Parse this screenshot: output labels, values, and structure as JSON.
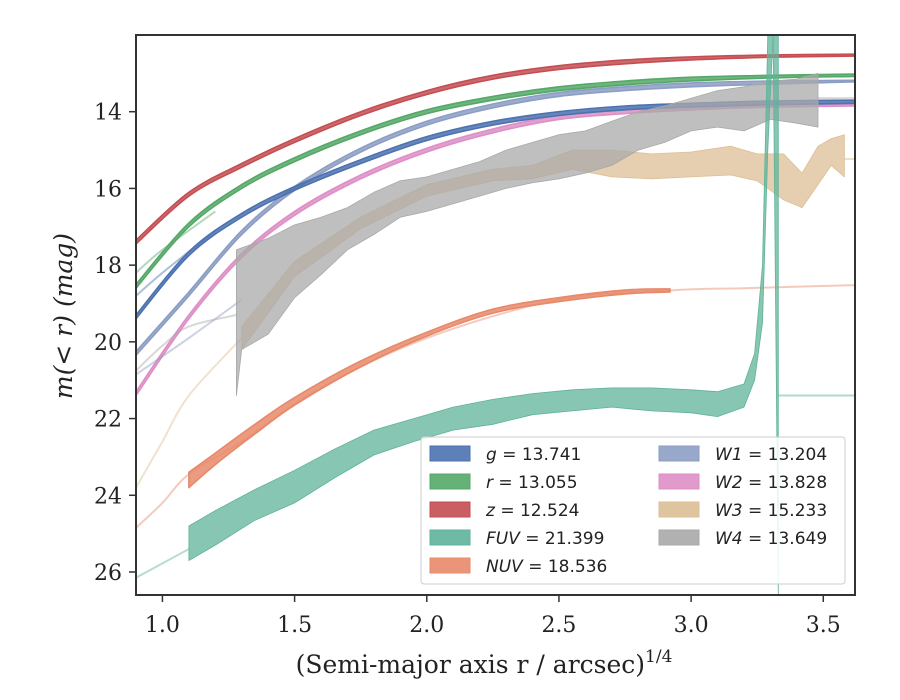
{
  "chart_data": {
    "type": "line",
    "xlabel_main": "(Semi-major axis r / arcsec)",
    "xlabel_sup": "1/4",
    "ylabel": "m(< r) (mag)",
    "xlim": [
      0.9,
      3.62
    ],
    "ylim": [
      26.6,
      12.0
    ],
    "xticks": [
      1.0,
      1.5,
      2.0,
      2.5,
      3.0,
      3.5
    ],
    "xtick_labels": [
      "1.0",
      "1.5",
      "2.0",
      "2.5",
      "3.0",
      "3.5"
    ],
    "yticks": [
      14,
      16,
      18,
      20,
      22,
      24,
      26
    ],
    "ytick_labels": [
      "14",
      "16",
      "18",
      "20",
      "22",
      "24",
      "26"
    ],
    "grid": false,
    "legend_position": "lower-right",
    "legend_columns": 2,
    "series": [
      {
        "name": "g = 13.741",
        "color": "#4c72b0",
        "kind": "curve",
        "band": [
          [
            0.9,
            19.4,
            19.3
          ],
          [
            1.1,
            17.75,
            17.65
          ],
          [
            1.3,
            16.75,
            16.65
          ],
          [
            1.5,
            16.05,
            15.95
          ],
          [
            1.75,
            15.35,
            15.25
          ],
          [
            2.0,
            14.75,
            14.65
          ],
          [
            2.25,
            14.35,
            14.25
          ],
          [
            2.5,
            14.1,
            14.0
          ],
          [
            2.75,
            13.95,
            13.85
          ],
          [
            3.0,
            13.88,
            13.78
          ],
          [
            3.3,
            13.82,
            13.72
          ],
          [
            3.62,
            13.78,
            13.7
          ]
        ],
        "extrap": [
          [
            0.9,
            18.8
          ],
          [
            1.0,
            18.2
          ],
          [
            1.2,
            17.1
          ]
        ]
      },
      {
        "name": "r = 13.055",
        "color": "#55a868",
        "kind": "curve",
        "band": [
          [
            0.9,
            18.6,
            18.5
          ],
          [
            1.1,
            17.0,
            16.9
          ],
          [
            1.3,
            16.0,
            15.9
          ],
          [
            1.5,
            15.3,
            15.2
          ],
          [
            1.75,
            14.6,
            14.5
          ],
          [
            2.0,
            14.05,
            13.95
          ],
          [
            2.25,
            13.7,
            13.6
          ],
          [
            2.5,
            13.45,
            13.35
          ],
          [
            2.75,
            13.3,
            13.2
          ],
          [
            3.0,
            13.2,
            13.1
          ],
          [
            3.3,
            13.12,
            13.05
          ],
          [
            3.62,
            13.08,
            13.02
          ]
        ],
        "extrap": [
          [
            0.9,
            18.2
          ],
          [
            1.0,
            17.6
          ],
          [
            1.2,
            16.6
          ]
        ]
      },
      {
        "name": "z = 12.524",
        "color": "#c44e52",
        "kind": "curve",
        "band": [
          [
            0.9,
            17.45,
            17.35
          ],
          [
            1.1,
            16.2,
            16.1
          ],
          [
            1.3,
            15.45,
            15.35
          ],
          [
            1.5,
            14.8,
            14.7
          ],
          [
            1.75,
            14.1,
            14.0
          ],
          [
            2.0,
            13.55,
            13.45
          ],
          [
            2.25,
            13.15,
            13.05
          ],
          [
            2.5,
            12.9,
            12.8
          ],
          [
            2.75,
            12.75,
            12.65
          ],
          [
            3.0,
            12.65,
            12.57
          ],
          [
            3.3,
            12.58,
            12.52
          ],
          [
            3.62,
            12.55,
            12.5
          ]
        ],
        "extrap": []
      },
      {
        "name": "FUV = 21.399",
        "color": "#5fb39a",
        "kind": "noisy",
        "band": [
          [
            1.1,
            25.7,
            24.8
          ],
          [
            1.2,
            25.3,
            24.4
          ],
          [
            1.35,
            24.65,
            23.85
          ],
          [
            1.5,
            24.2,
            23.35
          ],
          [
            1.65,
            23.55,
            22.8
          ],
          [
            1.8,
            22.95,
            22.3
          ],
          [
            1.95,
            22.6,
            22.0
          ],
          [
            2.1,
            22.3,
            21.7
          ],
          [
            2.25,
            22.15,
            21.5
          ],
          [
            2.4,
            21.9,
            21.35
          ],
          [
            2.55,
            21.8,
            21.25
          ],
          [
            2.7,
            21.7,
            21.2
          ],
          [
            2.85,
            21.8,
            21.2
          ],
          [
            3.0,
            21.85,
            21.25
          ],
          [
            3.1,
            21.95,
            21.3
          ],
          [
            3.2,
            21.7,
            21.1
          ],
          [
            3.24,
            21.0,
            20.3
          ],
          [
            3.27,
            19.5,
            18.0
          ],
          [
            3.29,
            15.0,
            12.0
          ],
          [
            3.31,
            12.0,
            12.0
          ],
          [
            3.33,
            26.6,
            12.0
          ]
        ],
        "extrap": [
          [
            0.9,
            26.15
          ],
          [
            1.1,
            25.4
          ]
        ],
        "hline": 21.399
      },
      {
        "name": "NUV = 18.536",
        "color": "#e8896a",
        "kind": "curve",
        "band": [
          [
            1.1,
            23.8,
            23.4
          ],
          [
            1.2,
            23.2,
            22.9
          ],
          [
            1.35,
            22.4,
            22.15
          ],
          [
            1.5,
            21.65,
            21.45
          ],
          [
            1.75,
            20.65,
            20.5
          ],
          [
            2.0,
            19.85,
            19.75
          ],
          [
            2.25,
            19.25,
            19.15
          ],
          [
            2.5,
            18.95,
            18.85
          ],
          [
            2.75,
            18.75,
            18.65
          ],
          [
            2.92,
            18.7,
            18.62
          ]
        ],
        "extrap": [
          [
            0.9,
            24.85
          ],
          [
            1.0,
            24.2
          ],
          [
            1.1,
            23.45
          ],
          [
            1.3,
            22.6
          ],
          [
            1.6,
            21.2
          ],
          [
            2.0,
            19.9
          ],
          [
            2.5,
            18.9
          ],
          [
            2.92,
            18.66
          ],
          [
            3.2,
            18.6
          ],
          [
            3.62,
            18.52
          ]
        ]
      },
      {
        "name": "W1 = 13.204",
        "color": "#8c9ec4",
        "kind": "curve",
        "band": [
          [
            0.9,
            20.35,
            20.25
          ],
          [
            1.1,
            18.8,
            18.7
          ],
          [
            1.3,
            17.2,
            17.1
          ],
          [
            1.5,
            16.05,
            15.95
          ],
          [
            1.75,
            15.05,
            14.95
          ],
          [
            2.0,
            14.35,
            14.25
          ],
          [
            2.25,
            13.9,
            13.8
          ],
          [
            2.5,
            13.6,
            13.5
          ],
          [
            2.75,
            13.45,
            13.35
          ],
          [
            3.0,
            13.35,
            13.25
          ],
          [
            3.3,
            13.28,
            13.2
          ],
          [
            3.62,
            13.22,
            13.18
          ]
        ],
        "extrap": [
          [
            0.9,
            20.85
          ],
          [
            1.1,
            19.9
          ],
          [
            1.3,
            18.9
          ]
        ]
      },
      {
        "name": "W2 = 13.828",
        "color": "#dd8fc6",
        "kind": "curve",
        "band": [
          [
            0.9,
            21.4,
            21.3
          ],
          [
            1.1,
            19.4,
            19.3
          ],
          [
            1.3,
            17.8,
            17.7
          ],
          [
            1.5,
            16.7,
            16.6
          ],
          [
            1.75,
            15.75,
            15.65
          ],
          [
            2.0,
            15.05,
            14.95
          ],
          [
            2.25,
            14.55,
            14.45
          ],
          [
            2.5,
            14.2,
            14.1
          ],
          [
            2.75,
            14.05,
            13.95
          ],
          [
            3.0,
            13.95,
            13.85
          ],
          [
            3.3,
            13.88,
            13.8
          ],
          [
            3.62,
            13.85,
            13.8
          ]
        ],
        "extrap": []
      },
      {
        "name": "W3 = 15.233",
        "color": "#dcbf95",
        "kind": "noisy",
        "band": [
          [
            1.3,
            20.2,
            19.6
          ],
          [
            1.5,
            18.3,
            17.9
          ],
          [
            1.75,
            17.05,
            16.75
          ],
          [
            2.0,
            16.2,
            15.9
          ],
          [
            2.25,
            15.8,
            15.5
          ],
          [
            2.4,
            15.75,
            15.4
          ],
          [
            2.55,
            15.5,
            15.0
          ],
          [
            2.7,
            15.7,
            15.0
          ],
          [
            2.85,
            15.75,
            15.1
          ],
          [
            3.0,
            15.7,
            15.05
          ],
          [
            3.15,
            15.65,
            14.9
          ],
          [
            3.25,
            15.8,
            15.1
          ],
          [
            3.35,
            16.3,
            15.1
          ],
          [
            3.42,
            16.5,
            15.6
          ],
          [
            3.48,
            15.9,
            14.9
          ],
          [
            3.53,
            15.4,
            14.7
          ],
          [
            3.58,
            15.7,
            14.6
          ]
        ],
        "extrap": [
          [
            0.9,
            23.8
          ],
          [
            1.0,
            22.6
          ],
          [
            1.1,
            21.4
          ],
          [
            1.3,
            19.9
          ]
        ],
        "hline": 15.233
      },
      {
        "name": "W4 = 13.649",
        "color": "#a9a9a9",
        "kind": "noisy",
        "band": [
          [
            1.28,
            21.4,
            17.6
          ],
          [
            1.3,
            20.2,
            17.55
          ],
          [
            1.4,
            19.8,
            17.3
          ],
          [
            1.5,
            18.85,
            16.95
          ],
          [
            1.6,
            18.25,
            16.75
          ],
          [
            1.7,
            17.6,
            16.5
          ],
          [
            1.8,
            17.2,
            16.1
          ],
          [
            1.9,
            16.75,
            15.8
          ],
          [
            2.0,
            16.6,
            15.7
          ],
          [
            2.1,
            16.4,
            15.5
          ],
          [
            2.2,
            16.2,
            15.3
          ],
          [
            2.3,
            16.0,
            15.0
          ],
          [
            2.4,
            15.85,
            14.8
          ],
          [
            2.5,
            15.75,
            14.6
          ],
          [
            2.6,
            15.6,
            14.5
          ],
          [
            2.7,
            15.4,
            14.25
          ],
          [
            2.8,
            15.0,
            14.0
          ],
          [
            2.9,
            14.8,
            13.85
          ],
          [
            3.0,
            14.5,
            13.65
          ],
          [
            3.1,
            14.4,
            13.45
          ],
          [
            3.2,
            14.5,
            13.35
          ],
          [
            3.3,
            14.2,
            13.2
          ],
          [
            3.4,
            14.3,
            13.15
          ],
          [
            3.48,
            14.4,
            13.0
          ]
        ],
        "extrap": [
          [
            0.9,
            20.75
          ],
          [
            1.0,
            20.1
          ],
          [
            1.1,
            19.6
          ],
          [
            1.28,
            19.3
          ]
        ],
        "hline": 13.649
      }
    ]
  }
}
